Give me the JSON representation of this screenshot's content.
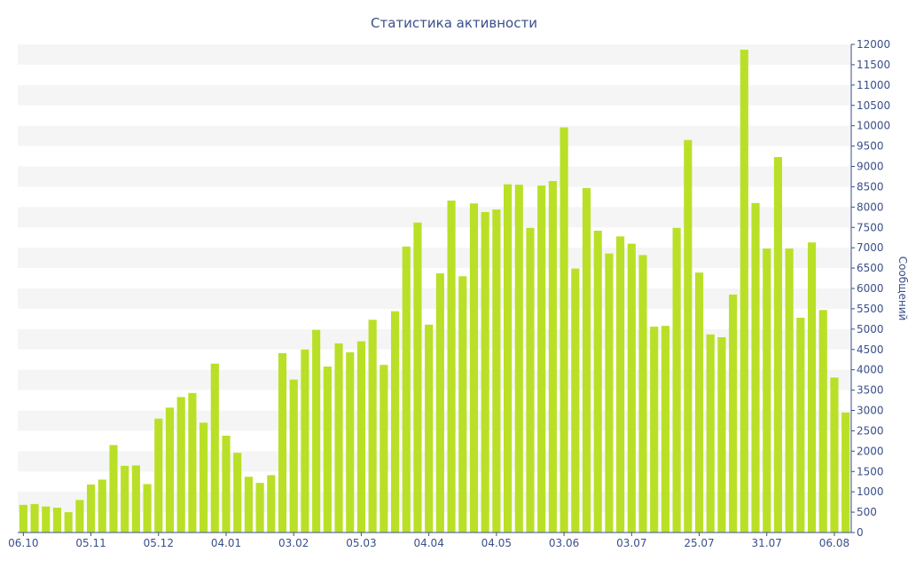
{
  "chart_data": {
    "type": "bar",
    "title": "Статистика активности",
    "xlabel": "",
    "ylabel": "Сообщений",
    "ylim": [
      0,
      12000
    ],
    "y_axis_side": "right",
    "grid": "alternating horizontal bands",
    "bar_color": "#b9e027",
    "band_color": "#f5f5f5",
    "text_color": "#3a4f8a",
    "y_ticks": [
      "0",
      "500",
      "1000",
      "1500",
      "2000",
      "2500",
      "3000",
      "3500",
      "4000",
      "4500",
      "5000",
      "5500",
      "6000",
      "6500",
      "7000",
      "7500",
      "8000",
      "8500",
      "9000",
      "9500",
      "10000",
      "10500",
      "11000",
      "11500",
      "12000"
    ],
    "x_tick_labels": [
      {
        "index": 0,
        "label": "06.10"
      },
      {
        "index": 6,
        "label": "05.11"
      },
      {
        "index": 12,
        "label": "05.12"
      },
      {
        "index": 18,
        "label": "04.01"
      },
      {
        "index": 24,
        "label": "03.02"
      },
      {
        "index": 30,
        "label": "05.03"
      },
      {
        "index": 36,
        "label": "04.04"
      },
      {
        "index": 42,
        "label": "04.05"
      },
      {
        "index": 48,
        "label": "03.06"
      },
      {
        "index": 54,
        "label": "03.07"
      },
      {
        "index": 60,
        "label": "25.07"
      },
      {
        "index": 66,
        "label": "31.07"
      },
      {
        "index": 72,
        "label": "06.08"
      }
    ],
    "values": [
      680,
      700,
      640,
      610,
      500,
      800,
      1180,
      1300,
      2150,
      1640,
      1650,
      1190,
      2800,
      3070,
      3330,
      3430,
      2700,
      4150,
      2380,
      1960,
      1370,
      1220,
      1410,
      4410,
      3760,
      4500,
      4980,
      4080,
      4650,
      4430,
      4700,
      5230,
      4120,
      5440,
      7030,
      7620,
      5110,
      6370,
      8160,
      6300,
      8090,
      7880,
      7940,
      8560,
      8550,
      7490,
      8530,
      8640,
      9960,
      6490,
      8470,
      7420,
      6860,
      7280,
      7100,
      6820,
      5060,
      5080,
      7490,
      9650,
      6390,
      4870,
      4800,
      5850,
      11870,
      8100,
      6980,
      9230,
      6980,
      5280,
      7130,
      5470,
      3810,
      2950
    ]
  }
}
